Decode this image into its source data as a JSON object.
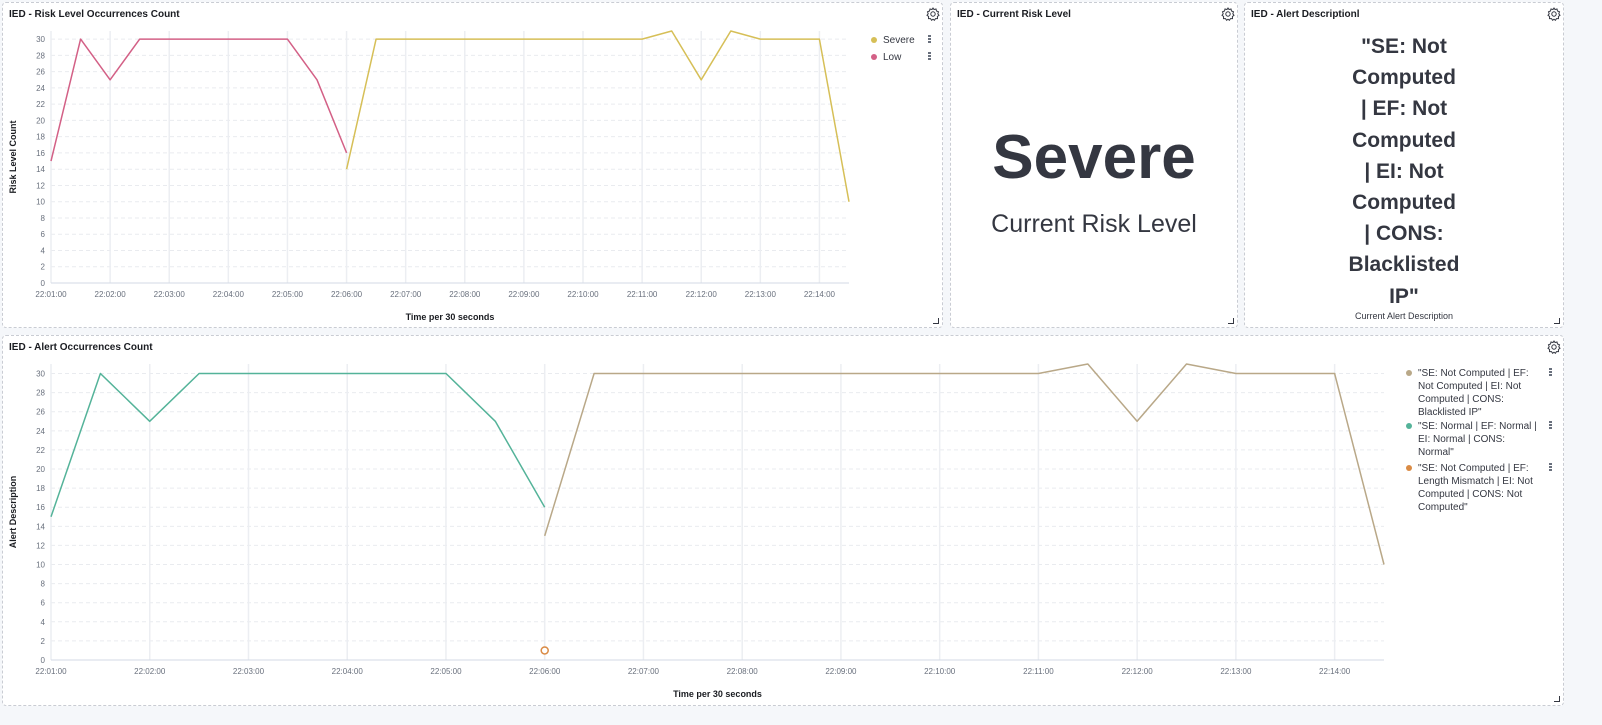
{
  "panels": {
    "risk_chart_title": "IED - Risk Level Occurrences Count",
    "current_risk_title": "IED - Current Risk Level",
    "alert_desc_title": "IED - Alert Descriptionl",
    "alert_chart_title": "IED - Alert Occurrences Count"
  },
  "icons": {
    "settings": "gear-icon",
    "resize": "resize-handle-icon",
    "legend_menu": "vertical-dots-icon"
  },
  "metric": {
    "value": "Severe",
    "label": "Current Risk Level"
  },
  "alert_description": {
    "lines": [
      "\"SE: Not",
      "Computed",
      "| EF: Not",
      "Computed",
      "| EI: Not",
      "Computed",
      "| CONS:",
      "Blacklisted",
      "IP\""
    ],
    "label": "Current Alert Description"
  },
  "colors": {
    "severe": "#d6bf57",
    "low": "#d36086",
    "se_not_computed": "#b9a888",
    "se_normal": "#54b399",
    "se_length_mismatch": "#da8b45",
    "text_dark": "#343741"
  },
  "chart_data": [
    {
      "type": "line",
      "title": "IED - Risk Level Occurrences Count",
      "xlabel": "Time per 30 seconds",
      "ylabel": "Risk Level Count",
      "ylim": [
        0,
        31
      ],
      "yticks": [
        0,
        2,
        4,
        6,
        8,
        10,
        12,
        14,
        16,
        18,
        20,
        22,
        24,
        26,
        28,
        30
      ],
      "xticks": [
        "22:01:00",
        "22:02:00",
        "22:03:00",
        "22:04:00",
        "22:05:00",
        "22:06:00",
        "22:07:00",
        "22:08:00",
        "22:09:00",
        "22:10:00",
        "22:11:00",
        "22:12:00",
        "22:13:00",
        "22:14:00"
      ],
      "grid": true,
      "legend": "top-right",
      "series": [
        {
          "name": "Severe",
          "color": "#d6bf57",
          "x": [
            "22:06:00",
            "22:06:30",
            "22:07:00",
            "22:07:30",
            "22:08:00",
            "22:08:30",
            "22:09:00",
            "22:09:30",
            "22:10:00",
            "22:10:30",
            "22:11:00",
            "22:11:30",
            "22:12:00",
            "22:12:30",
            "22:13:00",
            "22:13:30",
            "22:14:00",
            "22:14:30"
          ],
          "values": [
            14,
            30,
            30,
            30,
            30,
            30,
            30,
            30,
            30,
            30,
            30,
            31,
            25,
            31,
            30,
            30,
            30,
            10
          ]
        },
        {
          "name": "Low",
          "color": "#d36086",
          "x": [
            "22:01:00",
            "22:01:30",
            "22:02:00",
            "22:02:30",
            "22:03:00",
            "22:03:30",
            "22:04:00",
            "22:04:30",
            "22:05:00",
            "22:05:30",
            "22:06:00"
          ],
          "values": [
            15,
            30,
            25,
            30,
            30,
            30,
            30,
            30,
            30,
            25,
            16
          ]
        }
      ]
    },
    {
      "type": "line",
      "title": "IED - Alert Occurrences Count",
      "xlabel": "Time per 30 seconds",
      "ylabel": "Alert Description",
      "ylim": [
        0,
        31
      ],
      "yticks": [
        0,
        2,
        4,
        6,
        8,
        10,
        12,
        14,
        16,
        18,
        20,
        22,
        24,
        26,
        28,
        30
      ],
      "xticks": [
        "22:01:00",
        "22:02:00",
        "22:03:00",
        "22:04:00",
        "22:05:00",
        "22:06:00",
        "22:07:00",
        "22:08:00",
        "22:09:00",
        "22:10:00",
        "22:11:00",
        "22:12:00",
        "22:13:00",
        "22:14:00"
      ],
      "grid": true,
      "legend": "top-right",
      "series": [
        {
          "name": "\"SE: Not Computed | EF: Not Computed | EI: Not Computed | CONS: Blacklisted IP\"",
          "color": "#b9a888",
          "x": [
            "22:06:00",
            "22:06:30",
            "22:07:00",
            "22:07:30",
            "22:08:00",
            "22:08:30",
            "22:09:00",
            "22:09:30",
            "22:10:00",
            "22:10:30",
            "22:11:00",
            "22:11:30",
            "22:12:00",
            "22:12:30",
            "22:13:00",
            "22:13:30",
            "22:14:00",
            "22:14:30"
          ],
          "values": [
            13,
            30,
            30,
            30,
            30,
            30,
            30,
            30,
            30,
            30,
            30,
            31,
            25,
            31,
            30,
            30,
            30,
            10
          ]
        },
        {
          "name": "\"SE: Normal | EF: Normal | EI: Normal | CONS: Normal\"",
          "color": "#54b399",
          "x": [
            "22:01:00",
            "22:01:30",
            "22:02:00",
            "22:02:30",
            "22:03:00",
            "22:03:30",
            "22:04:00",
            "22:04:30",
            "22:05:00",
            "22:05:30",
            "22:06:00"
          ],
          "values": [
            15,
            30,
            25,
            30,
            30,
            30,
            30,
            30,
            30,
            25,
            16
          ]
        },
        {
          "name": "\"SE: Not Computed | EF: Length Mismatch | EI: Not Computed | CONS: Not Computed\"",
          "color": "#da8b45",
          "x": [
            "22:06:00"
          ],
          "values": [
            1
          ]
        }
      ]
    }
  ],
  "legend_display": {
    "risk": [
      "Severe",
      "Low"
    ],
    "alert": [
      [
        "\"SE: Not Computed | EF:",
        "Not Computed | EI: Not",
        "Computed | CONS:",
        "Blacklisted IP\""
      ],
      [
        "\"SE: Normal | EF: Normal |",
        "EI: Normal | CONS:",
        "Normal\""
      ],
      [
        "\"SE: Not Computed | EF:",
        "Length Mismatch | EI: Not",
        "Computed | CONS: Not",
        "Computed\""
      ]
    ]
  }
}
